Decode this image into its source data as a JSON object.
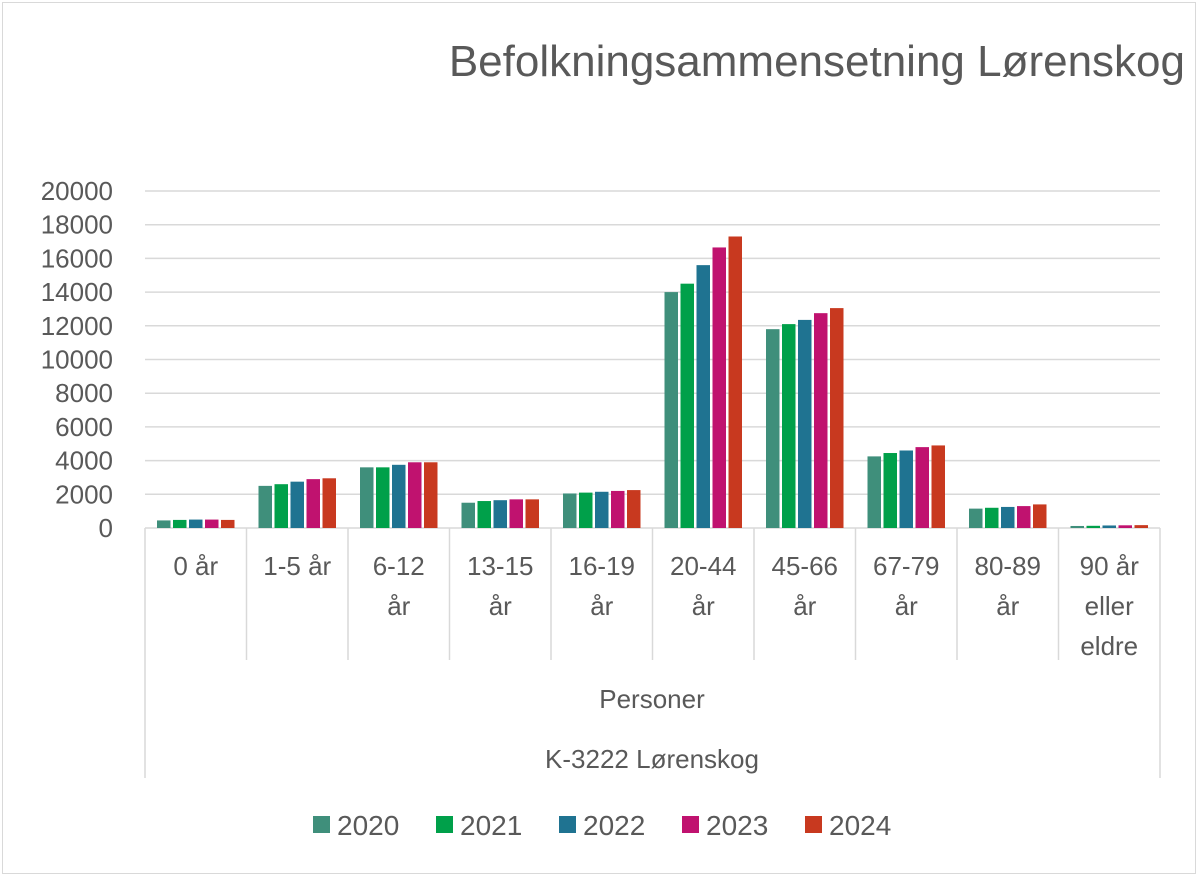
{
  "chart_data": {
    "type": "bar",
    "title": "Befolkningsammensetning Lørenskog",
    "xlabel_levels": [
      "Personer",
      "K-3222 Lørenskog"
    ],
    "ylabel": "",
    "ylim": [
      0,
      20000
    ],
    "yticks": [
      "0",
      "2000",
      "4000",
      "6000",
      "8000",
      "10000",
      "12000",
      "14000",
      "16000",
      "18000",
      "20000"
    ],
    "categories": [
      [
        "0 år"
      ],
      [
        "1-5 år"
      ],
      [
        "6-12",
        "år"
      ],
      [
        "13-15",
        "år"
      ],
      [
        "16-19",
        "år"
      ],
      [
        "20-44",
        "år"
      ],
      [
        "45-66",
        "år"
      ],
      [
        "67-79",
        "år"
      ],
      [
        "80-89",
        "år"
      ],
      [
        "90 år",
        "eller",
        "eldre"
      ]
    ],
    "series": [
      {
        "name": "2020",
        "color": "#3f8f7b",
        "values": [
          450,
          2500,
          3600,
          1500,
          2050,
          14000,
          11800,
          4250,
          1150,
          120
        ]
      },
      {
        "name": "2021",
        "color": "#00a04a",
        "values": [
          480,
          2600,
          3600,
          1600,
          2100,
          14500,
          12100,
          4450,
          1200,
          130
        ]
      },
      {
        "name": "2022",
        "color": "#1f7391",
        "values": [
          500,
          2750,
          3750,
          1650,
          2150,
          15600,
          12350,
          4600,
          1250,
          150
        ]
      },
      {
        "name": "2023",
        "color": "#c0126f",
        "values": [
          500,
          2900,
          3900,
          1700,
          2200,
          16650,
          12750,
          4800,
          1300,
          160
        ]
      },
      {
        "name": "2024",
        "color": "#c8391f",
        "values": [
          480,
          2950,
          3900,
          1700,
          2250,
          17300,
          13050,
          4900,
          1400,
          170
        ]
      }
    ],
    "grid": true,
    "legend_position": "bottom"
  }
}
